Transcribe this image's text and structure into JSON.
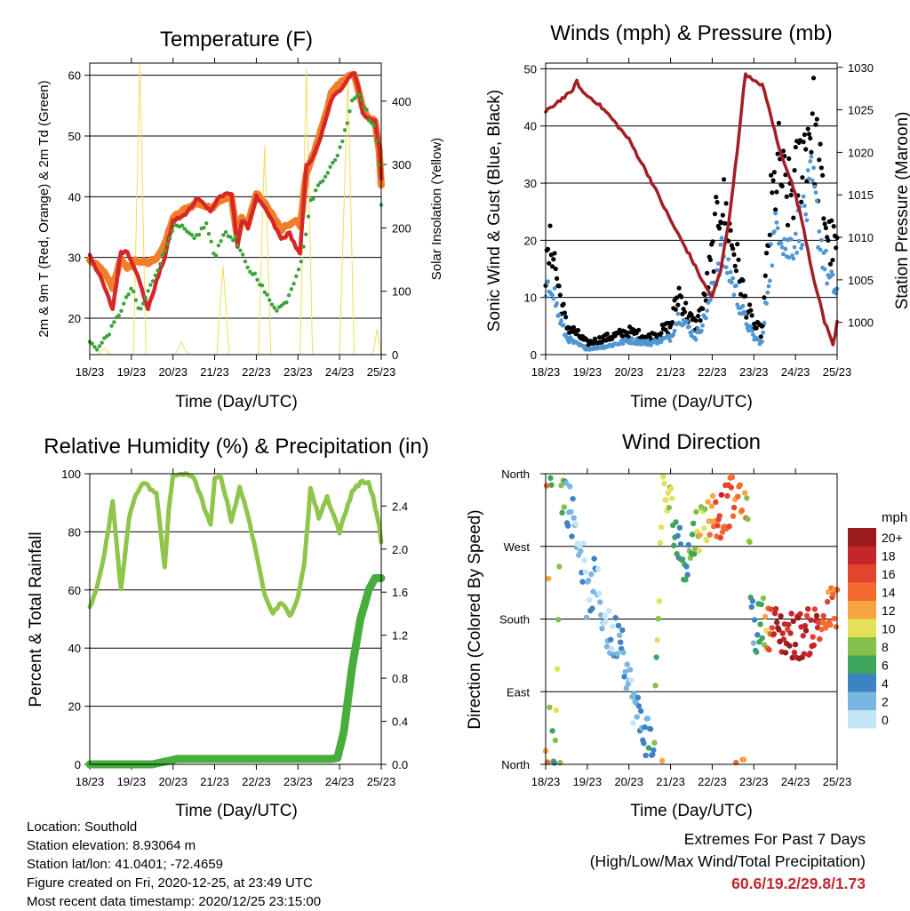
{
  "x_tick_labels": [
    "18/23",
    "19/23",
    "20/23",
    "21/23",
    "22/23",
    "23/23",
    "24/23",
    "25/23"
  ],
  "x_axis_label": "Time (Day/UTC)",
  "info": {
    "location": "Location: Southold",
    "elevation": "Station elevation: 8.93064 m",
    "latlon": "Station lat/lon: 41.0401; -72.4659",
    "created": "Figure created on Fri, 2020-12-25, at 23:49 UTC",
    "recent": "Most recent data timestamp: 2020/12/25 23:15:00"
  },
  "extremes": {
    "title": "Extremes For Past 7 Days",
    "subtitle": "(High/Low/Max Wind/Total Precipitation)",
    "values": "60.6/19.2/29.8/1.73",
    "color": "#c0272d"
  },
  "colorbar": {
    "unit": "mph",
    "labels": [
      "20+",
      "18",
      "16",
      "14",
      "12",
      "10",
      "8",
      "6",
      "4",
      "2",
      "0"
    ],
    "colors": [
      "#9b1b1e",
      "#c5262a",
      "#e2442e",
      "#f26b30",
      "#f6a542",
      "#e3e05a",
      "#85c04a",
      "#3ea65c",
      "#3d82c3",
      "#7ab6e2",
      "#c2e5f8"
    ]
  },
  "chart_data": [
    {
      "type": "line",
      "title": "Temperature (F)",
      "xlabel": "Time (Day/UTC)",
      "ylabel": "2m & 9m T (Red, Orange) & 2m Td (Green)",
      "y2label": "Solar Insolation (Yellow)",
      "ylim": [
        14,
        62
      ],
      "y_ticks": [
        20,
        30,
        40,
        50,
        60
      ],
      "y2lim": [
        0,
        460
      ],
      "y2_ticks": [
        0,
        100,
        200,
        300,
        400
      ],
      "x_range_days": [
        0,
        7
      ],
      "series": [
        {
          "axis": "left",
          "color": "#d62728",
          "width": 4.5,
          "x": [
            0,
            0.3,
            0.55,
            0.75,
            0.9,
            1.1,
            1.4,
            1.6,
            1.8,
            2.0,
            2.3,
            2.6,
            2.9,
            3.1,
            3.4,
            3.55,
            3.65,
            3.8,
            4.0,
            4.3,
            4.6,
            4.8,
            5.0,
            5.05,
            5.2,
            5.4,
            5.6,
            5.8,
            6.0,
            6.2,
            6.35,
            6.45,
            6.55,
            6.7,
            6.85,
            6.95,
            7.0
          ],
          "y": [
            30.5,
            26,
            21.5,
            31,
            31,
            28,
            21.5,
            26,
            30,
            36,
            37,
            40,
            37.5,
            40,
            40.5,
            32,
            36,
            35,
            40,
            37,
            33,
            34,
            31,
            30.5,
            45,
            47,
            51,
            56,
            57.5,
            59.5,
            60.6,
            58,
            54,
            52.8,
            52.5,
            48,
            43
          ]
        },
        {
          "axis": "left",
          "color": "#f07f2a",
          "width": 8,
          "x": [
            0,
            0.3,
            0.55,
            0.75,
            0.9,
            1.1,
            1.4,
            1.6,
            1.8,
            2.0,
            2.3,
            2.6,
            2.9,
            3.1,
            3.4,
            3.55,
            3.65,
            3.8,
            4.0,
            4.3,
            4.6,
            4.8,
            5.0,
            5.05,
            5.2,
            5.4,
            5.6,
            5.8,
            6.0,
            6.2,
            6.35,
            6.45,
            6.55,
            6.7,
            6.85,
            6.95,
            7.0
          ],
          "y": [
            29.5,
            28,
            25,
            30,
            28,
            29.5,
            29,
            30,
            32,
            36.5,
            38,
            39,
            38,
            39.5,
            40,
            33,
            36.5,
            35.5,
            40.5,
            38,
            34.5,
            35.5,
            36,
            35,
            44,
            47.5,
            52,
            57,
            58.5,
            60,
            60,
            57.5,
            54.5,
            53,
            52.5,
            47.5,
            42
          ]
        },
        {
          "axis": "left",
          "color": "#3aa538",
          "width": 3,
          "dotted": true,
          "x": [
            0,
            0.2,
            0.5,
            0.8,
            1.0,
            1.2,
            1.5,
            1.8,
            2.0,
            2.2,
            2.5,
            2.8,
            3.0,
            3.2,
            3.5,
            3.8,
            4.0,
            4.3,
            4.5,
            4.7,
            4.9,
            5.1,
            5.3,
            5.5,
            5.7,
            5.9,
            6.1,
            6.3,
            6.5,
            6.7,
            6.85,
            6.95,
            7.0
          ],
          "y": [
            16,
            15,
            18,
            22,
            25,
            21,
            26,
            31,
            35,
            35,
            33,
            35.5,
            30,
            34,
            33,
            28,
            27,
            23,
            21.5,
            22.5,
            26,
            30,
            39,
            42,
            44,
            46,
            50,
            56,
            57,
            53,
            51,
            45,
            39
          ]
        },
        {
          "axis": "right",
          "color": "#f2dc5a",
          "width": 1,
          "spikes": [
            [
              0.18,
              0.35,
              0.5
            ],
            [
              1.05,
              1.2,
              1.35
            ],
            [
              2.05,
              2.2,
              2.35
            ],
            [
              3.05,
              3.2,
              3.35
            ],
            [
              4.05,
              4.2,
              4.35
            ],
            [
              5.05,
              5.2,
              5.35
            ],
            [
              6.0,
              6.2,
              6.35
            ],
            [
              6.8,
              6.9,
              7.0
            ]
          ],
          "spike_peaks": [
            10,
            470,
            20,
            140,
            330,
            450,
            440,
            40
          ]
        }
      ]
    },
    {
      "type": "scatter",
      "title": "Winds (mph) & Pressure (mb)",
      "xlabel": "Time (Day/UTC)",
      "ylabel": "Sonic Wind & Gust (Blue, Black)",
      "y2label": "Station Pressure (Maroon)",
      "ylim": [
        0,
        51
      ],
      "y_ticks": [
        0,
        10,
        20,
        30,
        40,
        50
      ],
      "y2lim": [
        996.2,
        1030.5
      ],
      "y2_ticks": [
        1000,
        1005,
        1010,
        1015,
        1020,
        1025,
        1030
      ],
      "series": [
        {
          "name": "gust",
          "color": "#000000",
          "x": [
            0,
            0.15,
            0.3,
            0.5,
            0.7,
            1.0,
            1.5,
            2.0,
            2.5,
            3.0,
            3.2,
            3.4,
            3.6,
            3.8,
            4.0,
            4.2,
            4.4,
            4.6,
            4.8,
            5.0,
            5.2,
            5.4,
            5.6,
            5.8,
            6.0,
            6.2,
            6.4,
            6.6,
            6.8,
            7.0
          ],
          "y": [
            14,
            20,
            12,
            5,
            4,
            2,
            3,
            4,
            3,
            5,
            11,
            7,
            5,
            9,
            17,
            28,
            22,
            16,
            9,
            5,
            4,
            25,
            33,
            27,
            30,
            36,
            42,
            30,
            20,
            18
          ]
        },
        {
          "name": "wind",
          "color": "#4f96d2",
          "x": [
            0,
            0.15,
            0.3,
            0.5,
            0.7,
            1.0,
            1.5,
            2.0,
            2.5,
            3.0,
            3.2,
            3.4,
            3.6,
            3.8,
            4.0,
            4.2,
            4.4,
            4.6,
            4.8,
            5.0,
            5.2,
            5.4,
            5.6,
            5.8,
            6.0,
            6.2,
            6.4,
            6.6,
            6.8,
            7.0
          ],
          "y": [
            10,
            13,
            7,
            3,
            2,
            1,
            1.5,
            2.5,
            2,
            3,
            7,
            5,
            3,
            6,
            11,
            18,
            15,
            10,
            6,
            3,
            2,
            17,
            24,
            18,
            21,
            24,
            29.8,
            20,
            13,
            11
          ]
        },
        {
          "name": "pressure",
          "axis": "right",
          "color": "#a11f25",
          "x": [
            0,
            0.3,
            0.6,
            0.75,
            0.9,
            1.2,
            1.5,
            2.0,
            2.5,
            3.0,
            3.5,
            3.8,
            4.0,
            4.2,
            4.4,
            4.6,
            4.7,
            4.8,
            5.0,
            5.2,
            5.4,
            5.6,
            5.8,
            6.0,
            6.2,
            6.4,
            6.6,
            6.7,
            6.8,
            6.9,
            7.0
          ],
          "y": [
            1024.7,
            1026,
            1027,
            1028.3,
            1027,
            1026,
            1024.5,
            1021.5,
            1017,
            1012,
            1007.5,
            1004.5,
            1003,
            1006,
            1012,
            1020,
            1025,
            1029.3,
            1028.3,
            1028,
            1024.5,
            1020.5,
            1018,
            1015,
            1011,
            1006,
            1002,
            1000,
            999,
            997.2,
            1000
          ]
        }
      ]
    },
    {
      "type": "line",
      "title": "Relative Humidity (%) & Precipitation (in)",
      "xlabel": "Time (Day/UTC)",
      "ylabel": "Percent & Total Rainfall",
      "ylim": [
        0,
        100
      ],
      "y_ticks": [
        0,
        20,
        40,
        60,
        80,
        100
      ],
      "y2lim": [
        0,
        2.7
      ],
      "y2_ticks": [
        0.0,
        0.4,
        0.8,
        1.2,
        1.6,
        2.0,
        2.4
      ],
      "series": [
        {
          "name": "rh",
          "color": "#8fc54a",
          "x": [
            0,
            0.15,
            0.35,
            0.55,
            0.75,
            0.95,
            1.1,
            1.3,
            1.6,
            1.8,
            1.9,
            2.0,
            2.15,
            2.5,
            2.9,
            3.0,
            3.15,
            3.4,
            3.6,
            3.8,
            4.0,
            4.2,
            4.4,
            4.6,
            4.8,
            5.0,
            5.15,
            5.3,
            5.5,
            5.7,
            6.0,
            6.3,
            6.5,
            6.7,
            6.8,
            6.95,
            7.0
          ],
          "y": [
            54,
            60,
            72,
            90,
            60,
            85,
            93,
            97,
            93,
            68,
            88,
            99,
            100,
            99,
            82,
            98,
            99,
            84,
            95,
            86,
            72,
            59,
            52,
            56,
            51,
            57,
            69,
            95,
            85,
            92,
            80,
            94,
            97,
            97,
            92,
            82,
            76
          ]
        },
        {
          "name": "precip",
          "axis": "right",
          "color": "#47ad3c",
          "x": [
            0,
            1.5,
            2.1,
            5.8,
            5.95,
            6.1,
            6.3,
            6.5,
            6.7,
            6.85,
            7.0
          ],
          "y": [
            0.0,
            0.0,
            0.05,
            0.05,
            0.06,
            0.3,
            0.9,
            1.35,
            1.62,
            1.73,
            1.73
          ]
        }
      ]
    },
    {
      "type": "scatter",
      "title": "Wind Direction",
      "xlabel": "Time (Day/UTC)",
      "ylabel": "Direction (Colored By Speed)",
      "y_tick_labels": [
        "North",
        "East",
        "South",
        "West",
        "North"
      ],
      "ylim": [
        0,
        360
      ],
      "series": [
        {
          "name": "direction",
          "color_by": "speed",
          "x": [
            0.05,
            0.1,
            0.2,
            0.25,
            0.35,
            0.5,
            0.7,
            0.9,
            1.0,
            1.2,
            1.4,
            1.6,
            1.8,
            2.0,
            2.2,
            2.4,
            2.6,
            2.8,
            3.0,
            3.2,
            3.4,
            3.6,
            3.8,
            4.0,
            4.2,
            4.5,
            4.8,
            5.0,
            5.2,
            5.4,
            5.6,
            5.8,
            6.0,
            6.2,
            6.5,
            6.7,
            6.9
          ],
          "y": [
            350,
            10,
            20,
            30,
            345,
            330,
            300,
            250,
            200,
            230,
            180,
            150,
            170,
            100,
            60,
            40,
            20,
            340,
            320,
            270,
            250,
            290,
            300,
            310,
            310,
            330,
            340,
            160,
            180,
            170,
            165,
            160,
            160,
            160,
            170,
            180,
            195
          ],
          "speed": [
            14,
            6,
            4,
            8,
            10,
            4,
            2,
            2,
            1,
            3,
            1,
            2,
            3,
            1,
            2,
            3,
            6,
            10,
            9,
            4,
            5,
            8,
            10,
            13,
            16,
            14,
            12,
            3,
            7,
            17,
            19,
            18,
            19,
            18,
            18,
            15,
            13
          ]
        }
      ]
    }
  ]
}
